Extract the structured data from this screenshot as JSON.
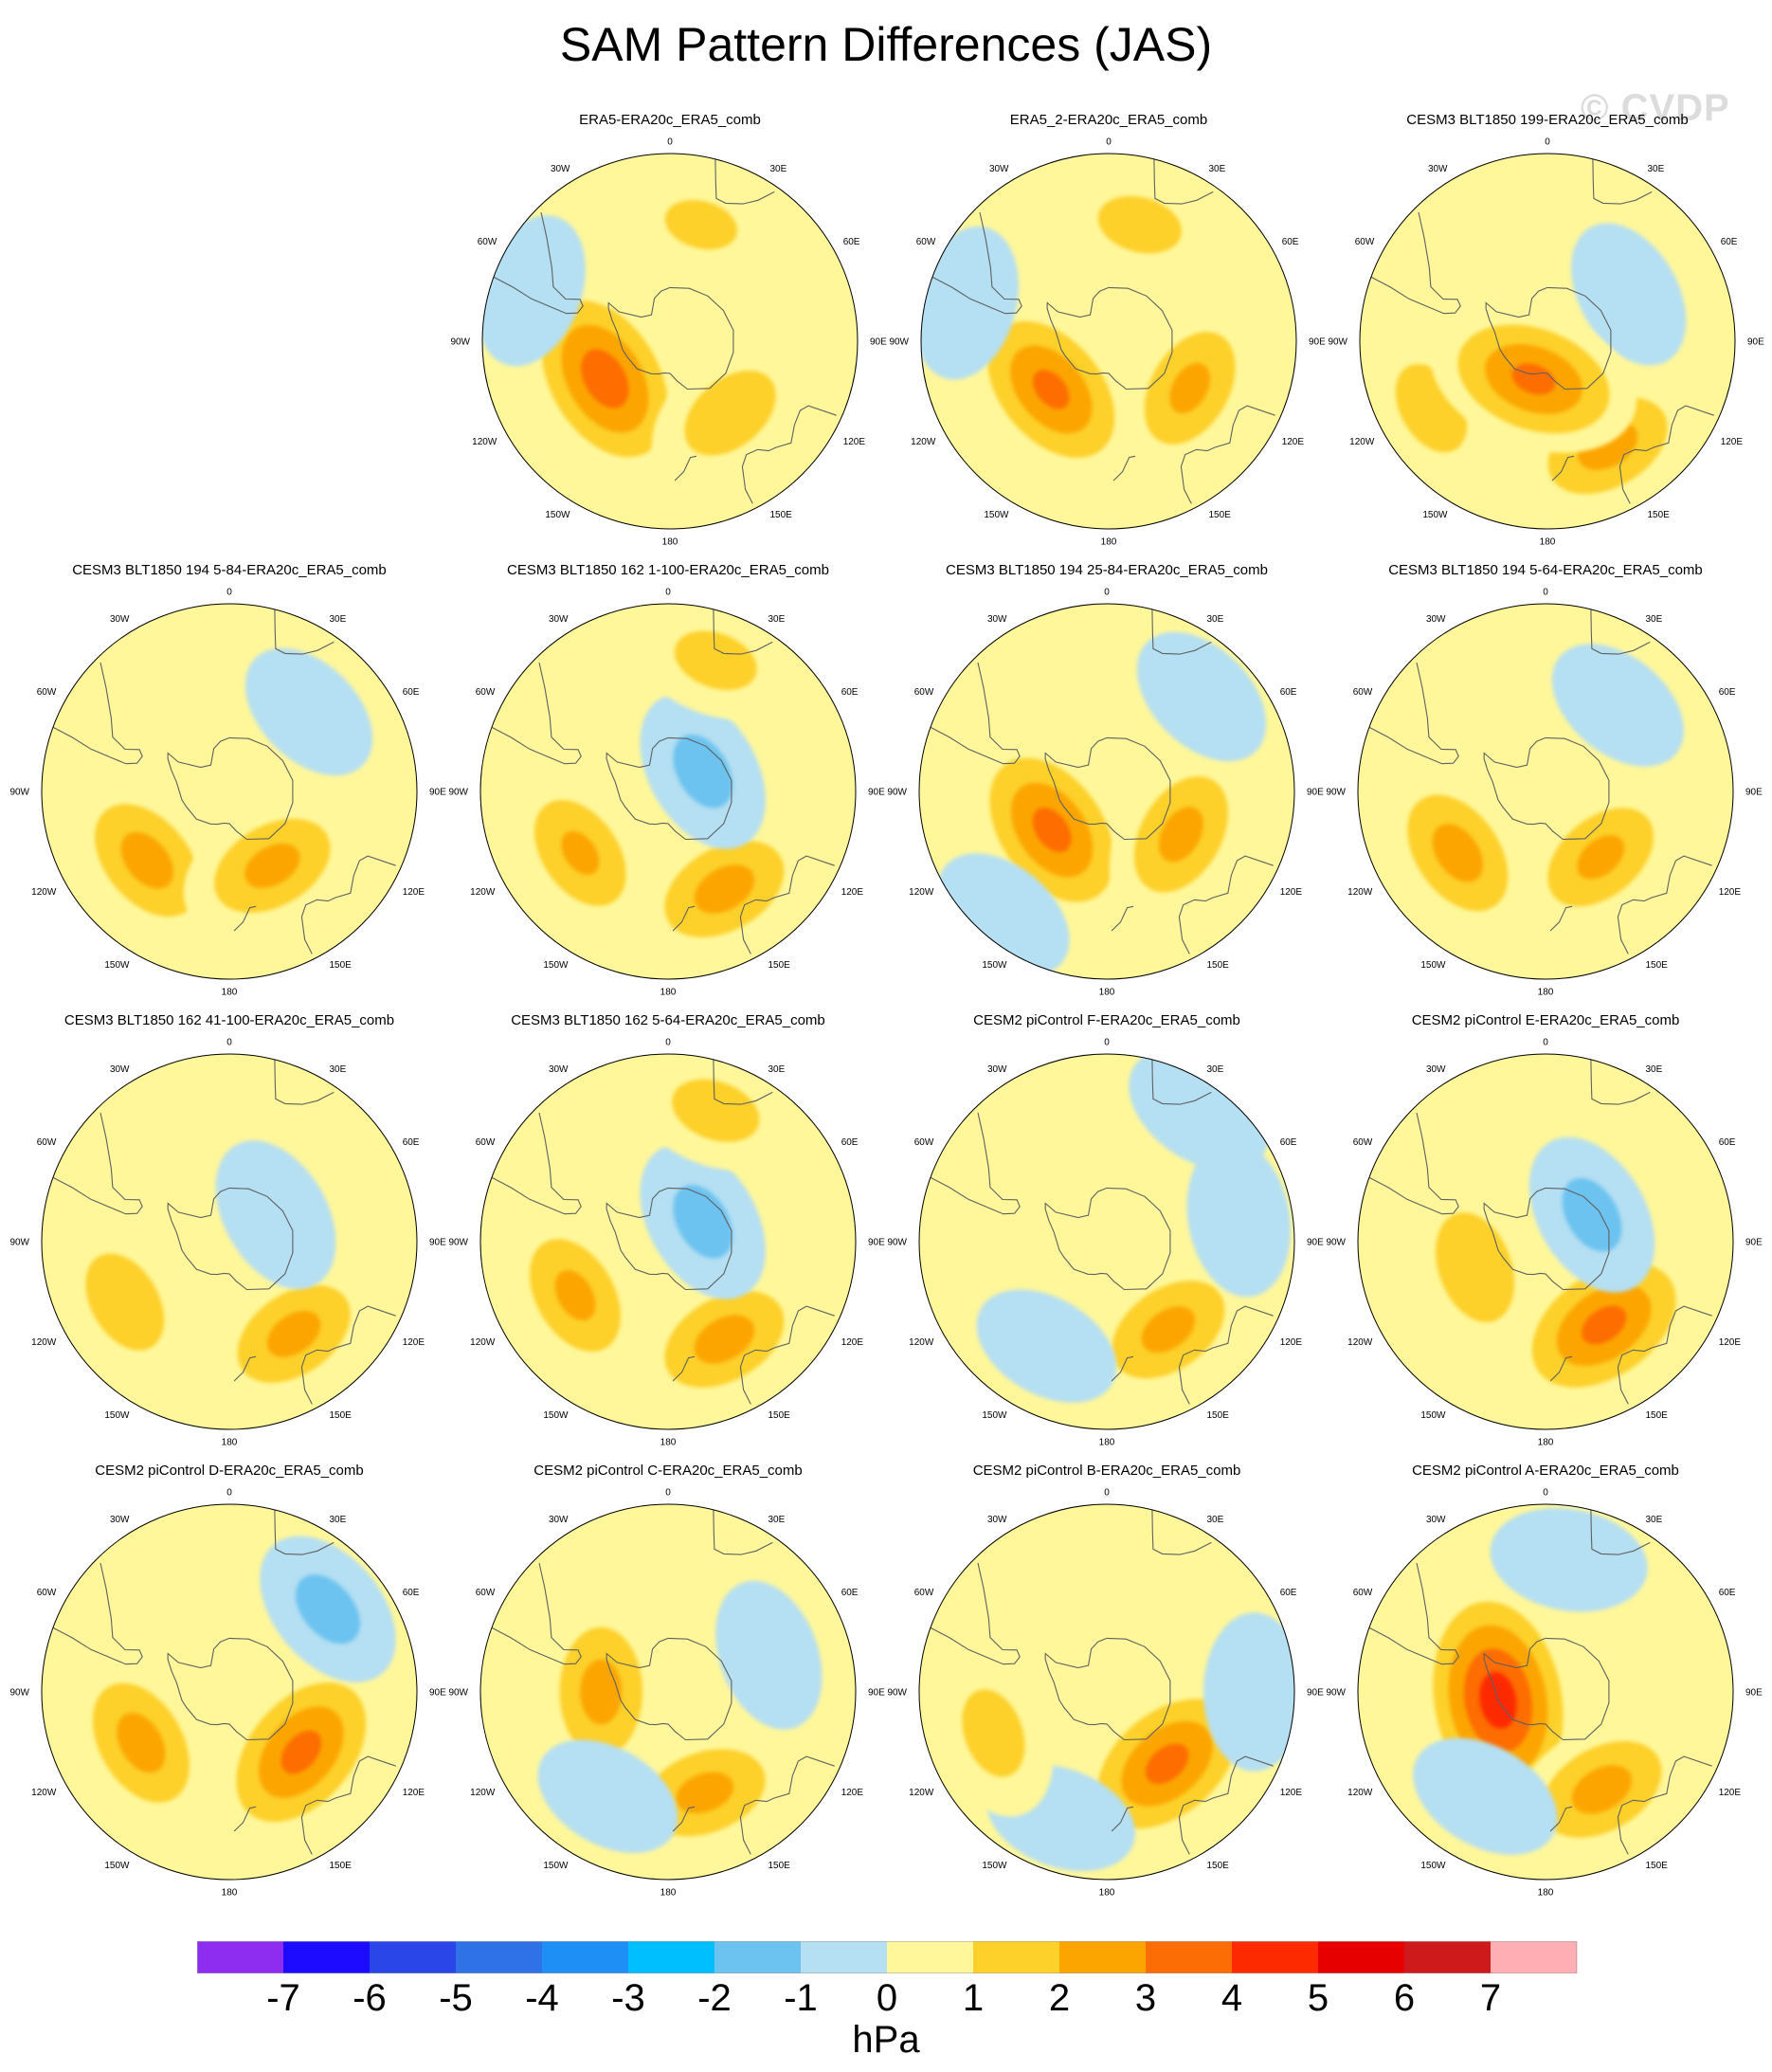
{
  "title": "SAM Pattern Differences (JAS)",
  "watermark": "© CVDP",
  "colors": {
    "level_colors": [
      "#8e2df0",
      "#1c0bff",
      "#2b46e8",
      "#2f72e8",
      "#1d8ff5",
      "#00bfff",
      "#6cc3f0",
      "#b5dff2",
      "#fff79a",
      "#fdd02a",
      "#fca500",
      "#fd6d06",
      "#fd2a00",
      "#e60000",
      "#ce1a1a",
      "#ffafb3"
    ],
    "ocean_fill": "#fff79a",
    "coast": "#606060",
    "panel_border": "#000000"
  },
  "colorbar": {
    "labels": [
      "-7",
      "-6",
      "-5",
      "-4",
      "-3",
      "-2",
      "-1",
      "0",
      "1",
      "2",
      "3",
      "4",
      "5",
      "6",
      "7"
    ],
    "units": "hPa"
  },
  "panels": [
    {
      "title": "ERA5-ERA20c_ERA5_comb"
    },
    {
      "title": "ERA5_2-ERA20c_ERA5_comb"
    },
    {
      "title": "CESM3 BLT1850 199-ERA20c_ERA5_comb"
    },
    {
      "title": "CESM3 BLT1850 194 5-84-ERA20c_ERA5_comb"
    },
    {
      "title": "CESM3 BLT1850 162 1-100-ERA20c_ERA5_comb"
    },
    {
      "title": "CESM3 BLT1850 194 25-84-ERA20c_ERA5_comb"
    },
    {
      "title": "CESM3 BLT1850 194 5-64-ERA20c_ERA5_comb"
    },
    {
      "title": "CESM3 BLT1850 162 41-100-ERA20c_ERA5_comb"
    },
    {
      "title": "CESM3 BLT1850 162 5-64-ERA20c_ERA5_comb"
    },
    {
      "title": "CESM2 piControl F-ERA20c_ERA5_comb"
    },
    {
      "title": "CESM2 piControl E-ERA20c_ERA5_comb"
    },
    {
      "title": "CESM2 piControl D-ERA20c_ERA5_comb"
    },
    {
      "title": "CESM2 piControl C-ERA20c_ERA5_comb"
    },
    {
      "title": "CESM2 piControl B-ERA20c_ERA5_comb"
    },
    {
      "title": "CESM2 piControl A-ERA20c_ERA5_comb"
    }
  ],
  "lon_labels": {
    "l0": "0",
    "l30e": "30E",
    "l60e": "60E",
    "l90e": "90E",
    "l120e": "120E",
    "l150e": "150E",
    "l180": "180",
    "l150w": "150W",
    "l120w": "120W",
    "l90w": "90W",
    "l60w": "60W",
    "l30w": "30W"
  },
  "chart_data": {
    "type": "heatmap",
    "title": "SAM Pattern Differences (JAS)",
    "projection": "south-polar-stereographic",
    "units": "hPa",
    "levels": [
      -7,
      -6,
      -5,
      -4,
      -3,
      -2,
      -1,
      0,
      1,
      2,
      3,
      4,
      5,
      6,
      7
    ],
    "panels": [
      {
        "name": "ERA5-ERA20c_ERA5_comb",
        "anomalies": [
          {
            "lon": -120,
            "lat": -62,
            "value": 3.6
          },
          {
            "lon": 140,
            "lat": -55,
            "value": 1.8
          },
          {
            "lon": -70,
            "lat": -35,
            "value": -0.8
          },
          {
            "lon": 15,
            "lat": -45,
            "value": 1.2
          }
        ]
      },
      {
        "name": "ERA5_2-ERA20c_ERA5_comb",
        "anomalies": [
          {
            "lon": -130,
            "lat": -62,
            "value": 3.2
          },
          {
            "lon": 120,
            "lat": -55,
            "value": 2.2
          },
          {
            "lon": -75,
            "lat": -35,
            "value": -0.8
          },
          {
            "lon": 15,
            "lat": -45,
            "value": 1.4
          }
        ]
      },
      {
        "name": "CESM3 BLT1850 199-ERA20c_ERA5_comb",
        "anomalies": [
          {
            "lon": 150,
            "lat": -45,
            "value": 2.4
          },
          {
            "lon": -120,
            "lat": -40,
            "value": 1.6
          },
          {
            "lon": 60,
            "lat": -55,
            "value": -0.7
          },
          {
            "lon": -160,
            "lat": -75,
            "value": 3.2
          }
        ]
      },
      {
        "name": "CESM3 BLT1850 194 5-84-ERA20c_ERA5_comb",
        "anomalies": [
          {
            "lon": -130,
            "lat": -50,
            "value": 2.4
          },
          {
            "lon": 150,
            "lat": -58,
            "value": 2.3
          },
          {
            "lon": 45,
            "lat": -48,
            "value": -0.6
          }
        ]
      },
      {
        "name": "CESM3 BLT1850 162 1-100-ERA20c_ERA5_comb",
        "anomalies": [
          {
            "lon": 150,
            "lat": -48,
            "value": 2.4
          },
          {
            "lon": -125,
            "lat": -50,
            "value": 2.1
          },
          {
            "lon": 60,
            "lat": -75,
            "value": -1.3
          },
          {
            "lon": 20,
            "lat": -38,
            "value": 1.4
          }
        ]
      },
      {
        "name": "CESM3 BLT1850 194 25-84-ERA20c_ERA5_comb",
        "anomalies": [
          {
            "lon": -125,
            "lat": -65,
            "value": 3.3
          },
          {
            "lon": 120,
            "lat": -58,
            "value": 2.3
          },
          {
            "lon": 45,
            "lat": -40,
            "value": -0.7
          },
          {
            "lon": -140,
            "lat": -30,
            "value": -0.6
          }
        ]
      },
      {
        "name": "CESM3 BLT1850 194 5-64-ERA20c_ERA5_comb",
        "anomalies": [
          {
            "lon": -125,
            "lat": -50,
            "value": 2.4
          },
          {
            "lon": 140,
            "lat": -58,
            "value": 2.2
          },
          {
            "lon": 40,
            "lat": -48,
            "value": -0.6
          }
        ]
      },
      {
        "name": "CESM3 BLT1850 162 41-100-ERA20c_ERA5_comb",
        "anomalies": [
          {
            "lon": 145,
            "lat": -48,
            "value": 2.3
          },
          {
            "lon": -120,
            "lat": -45,
            "value": 1.8
          },
          {
            "lon": 60,
            "lat": -70,
            "value": -1.0
          }
        ]
      },
      {
        "name": "CESM3 BLT1850 162 5-64-ERA20c_ERA5_comb",
        "anomalies": [
          {
            "lon": 150,
            "lat": -48,
            "value": 2.4
          },
          {
            "lon": -120,
            "lat": -50,
            "value": 2.2
          },
          {
            "lon": 60,
            "lat": -75,
            "value": -1.3
          },
          {
            "lon": 20,
            "lat": -38,
            "value": 1.5
          }
        ]
      },
      {
        "name": "CESM2 piControl F-ERA20c_ERA5_comb",
        "anomalies": [
          {
            "lon": 145,
            "lat": -50,
            "value": 2.3
          },
          {
            "lon": 35,
            "lat": -30,
            "value": -0.8
          },
          {
            "lon": 80,
            "lat": -40,
            "value": -0.9
          },
          {
            "lon": -150,
            "lat": -45,
            "value": -0.6
          }
        ]
      },
      {
        "name": "CESM2 piControl E-ERA20c_ERA5_comb",
        "anomalies": [
          {
            "lon": 145,
            "lat": -52,
            "value": 3.3
          },
          {
            "lon": -110,
            "lat": -62,
            "value": 2.0
          },
          {
            "lon": 60,
            "lat": -70,
            "value": -1.3
          }
        ]
      },
      {
        "name": "CESM2 piControl D-ERA20c_ERA5_comb",
        "anomalies": [
          {
            "lon": 130,
            "lat": -55,
            "value": 3.3
          },
          {
            "lon": -120,
            "lat": -52,
            "value": 2.4
          },
          {
            "lon": 50,
            "lat": -42,
            "value": -1.3
          }
        ]
      },
      {
        "name": "CESM2 piControl C-ERA20c_ERA5_comb",
        "anomalies": [
          {
            "lon": 160,
            "lat": -50,
            "value": 2.3
          },
          {
            "lon": -90,
            "lat": -65,
            "value": 2.4
          },
          {
            "lon": 70,
            "lat": -50,
            "value": -0.7
          },
          {
            "lon": -150,
            "lat": -45,
            "value": -0.6
          }
        ]
      },
      {
        "name": "CESM2 piControl B-ERA20c_ERA5_comb",
        "anomalies": [
          {
            "lon": 140,
            "lat": -55,
            "value": 3.3
          },
          {
            "lon": 90,
            "lat": -35,
            "value": -0.9
          },
          {
            "lon": -160,
            "lat": -40,
            "value": -0.7
          },
          {
            "lon": -110,
            "lat": -45,
            "value": 1.5
          }
        ]
      },
      {
        "name": "CESM2 piControl A-ERA20c_ERA5_comb",
        "anomalies": [
          {
            "lon": -100,
            "lat": -72,
            "value": 4.6
          },
          {
            "lon": 150,
            "lat": -48,
            "value": 2.4
          },
          {
            "lon": 10,
            "lat": -40,
            "value": -0.9
          },
          {
            "lon": -150,
            "lat": -45,
            "value": -0.8
          }
        ]
      }
    ]
  }
}
